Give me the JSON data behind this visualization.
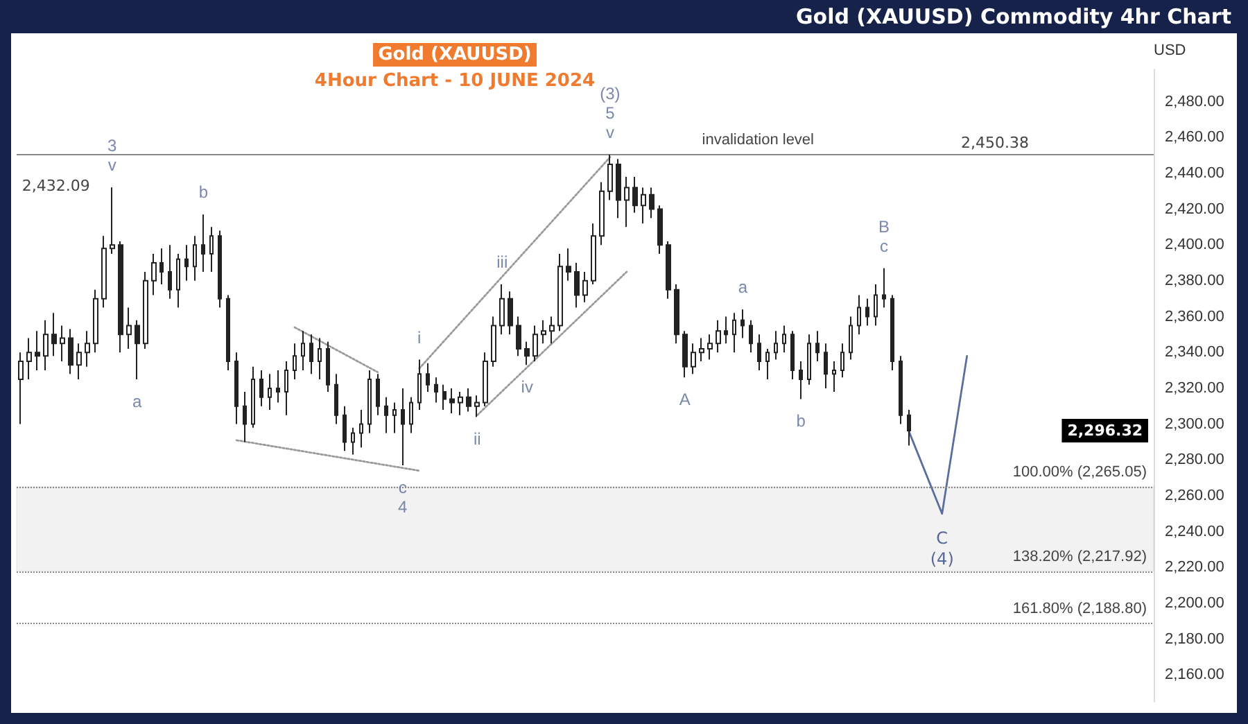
{
  "chart_data": {
    "type": "candlestick",
    "title": "Gold (XAUUSD)",
    "subtitle": "4Hour Chart - 10 JUNE 2024",
    "ylabel": "USD",
    "color": "#222222",
    "categories": [
      null,
      null,
      null,
      null,
      null,
      null,
      null,
      null,
      null,
      null,
      null,
      null,
      null,
      null,
      null,
      null,
      null,
      null,
      null,
      null,
      null,
      null,
      null,
      null,
      null,
      null,
      null,
      null,
      null,
      null,
      null,
      null,
      null,
      null,
      null,
      null,
      null,
      null,
      null,
      null,
      null,
      null,
      null,
      null,
      null,
      null,
      null,
      null,
      null,
      null,
      null,
      null,
      null,
      null,
      null,
      null,
      null,
      null,
      null,
      null,
      null,
      null,
      null,
      null,
      null,
      null,
      null,
      null,
      null,
      null,
      null,
      null,
      null,
      null,
      null,
      null,
      null,
      null,
      null,
      null,
      null,
      null,
      null,
      null,
      null,
      null,
      null,
      null,
      null,
      null,
      null,
      null,
      null,
      null,
      null,
      null,
      null,
      null,
      null,
      null,
      null,
      null,
      null,
      null,
      null,
      null,
      null,
      null,
      null,
      null,
      null,
      null,
      null,
      null,
      null,
      null,
      null,
      null,
      null,
      null,
      null,
      null,
      null,
      null,
      null,
      null,
      null,
      null,
      null,
      null,
      null,
      null,
      null,
      null,
      null,
      null,
      null
    ],
    "ohlc": [
      [
        2325,
        2340,
        2300,
        2335
      ],
      [
        2335,
        2348,
        2325,
        2340
      ],
      [
        2340,
        2352,
        2330,
        2338
      ],
      [
        2338,
        2358,
        2330,
        2350
      ],
      [
        2350,
        2362,
        2338,
        2345
      ],
      [
        2345,
        2355,
        2335,
        2348
      ],
      [
        2348,
        2353,
        2328,
        2333
      ],
      [
        2333,
        2345,
        2325,
        2340
      ],
      [
        2340,
        2352,
        2332,
        2345
      ],
      [
        2345,
        2375,
        2340,
        2370
      ],
      [
        2370,
        2405,
        2365,
        2398
      ],
      [
        2398,
        2432.09,
        2395,
        2400
      ],
      [
        2400,
        2402,
        2340,
        2350
      ],
      [
        2350,
        2365,
        2342,
        2355
      ],
      [
        2355,
        2358,
        2325,
        2345
      ],
      [
        2345,
        2385,
        2342,
        2380
      ],
      [
        2380,
        2395,
        2372,
        2390
      ],
      [
        2390,
        2398,
        2378,
        2385
      ],
      [
        2385,
        2400,
        2370,
        2375
      ],
      [
        2375,
        2395,
        2365,
        2392
      ],
      [
        2392,
        2400,
        2380,
        2388
      ],
      [
        2388,
        2405,
        2380,
        2400
      ],
      [
        2400,
        2417,
        2385,
        2395
      ],
      [
        2395,
        2410,
        2385,
        2405
      ],
      [
        2405,
        2408,
        2365,
        2370
      ],
      [
        2370,
        2372,
        2330,
        2335
      ],
      [
        2335,
        2340,
        2300,
        2310
      ],
      [
        2310,
        2318,
        2290,
        2300
      ],
      [
        2300,
        2332,
        2298,
        2325
      ],
      [
        2325,
        2330,
        2310,
        2315
      ],
      [
        2315,
        2328,
        2308,
        2320
      ],
      [
        2320,
        2330,
        2312,
        2318
      ],
      [
        2318,
        2335,
        2305,
        2330
      ],
      [
        2330,
        2345,
        2325,
        2338
      ],
      [
        2338,
        2352,
        2330,
        2345
      ],
      [
        2345,
        2350,
        2328,
        2335
      ],
      [
        2335,
        2348,
        2325,
        2342
      ],
      [
        2342,
        2346,
        2318,
        2322
      ],
      [
        2322,
        2328,
        2300,
        2305
      ],
      [
        2305,
        2310,
        2285,
        2290
      ],
      [
        2290,
        2298,
        2283,
        2295
      ],
      [
        2295,
        2308,
        2287,
        2300
      ],
      [
        2300,
        2330,
        2295,
        2325
      ],
      [
        2325,
        2328,
        2305,
        2310
      ],
      [
        2310,
        2315,
        2295,
        2305
      ],
      [
        2305,
        2312,
        2295,
        2308
      ],
      [
        2308,
        2320,
        2277,
        2300
      ],
      [
        2300,
        2315,
        2295,
        2312
      ],
      [
        2312,
        2336,
        2308,
        2328
      ],
      [
        2328,
        2334,
        2318,
        2322
      ],
      [
        2322,
        2326,
        2312,
        2318
      ],
      [
        2318,
        2322,
        2308,
        2314
      ],
      [
        2314,
        2320,
        2306,
        2312
      ],
      [
        2312,
        2318,
        2305,
        2315
      ],
      [
        2315,
        2320,
        2307,
        2310
      ],
      [
        2310,
        2316,
        2304,
        2312
      ],
      [
        2312,
        2340,
        2310,
        2335
      ],
      [
        2335,
        2360,
        2332,
        2355
      ],
      [
        2355,
        2378,
        2350,
        2370
      ],
      [
        2370,
        2374,
        2350,
        2355
      ],
      [
        2355,
        2360,
        2338,
        2342
      ],
      [
        2342,
        2346,
        2333,
        2338
      ],
      [
        2338,
        2355,
        2335,
        2350
      ],
      [
        2350,
        2358,
        2345,
        2352
      ],
      [
        2352,
        2360,
        2345,
        2355
      ],
      [
        2355,
        2395,
        2352,
        2388
      ],
      [
        2388,
        2398,
        2380,
        2385
      ],
      [
        2385,
        2390,
        2365,
        2372
      ],
      [
        2372,
        2385,
        2368,
        2380
      ],
      [
        2380,
        2412,
        2378,
        2405
      ],
      [
        2405,
        2435,
        2400,
        2430
      ],
      [
        2430,
        2450.38,
        2425,
        2445
      ],
      [
        2445,
        2448,
        2415,
        2425
      ],
      [
        2425,
        2438,
        2410,
        2432
      ],
      [
        2432,
        2438,
        2418,
        2422
      ],
      [
        2422,
        2432,
        2412,
        2428
      ],
      [
        2428,
        2432,
        2415,
        2420
      ],
      [
        2420,
        2422,
        2395,
        2400
      ],
      [
        2400,
        2402,
        2370,
        2375
      ],
      [
        2375,
        2378,
        2345,
        2350
      ],
      [
        2350,
        2352,
        2326,
        2332
      ],
      [
        2332,
        2345,
        2328,
        2340
      ],
      [
        2340,
        2348,
        2335,
        2342
      ],
      [
        2342,
        2350,
        2336,
        2345
      ],
      [
        2345,
        2358,
        2340,
        2352
      ],
      [
        2352,
        2360,
        2345,
        2350
      ],
      [
        2350,
        2362,
        2340,
        2358
      ],
      [
        2358,
        2364,
        2348,
        2355
      ],
      [
        2355,
        2358,
        2340,
        2345
      ],
      [
        2345,
        2350,
        2330,
        2335
      ],
      [
        2335,
        2342,
        2325,
        2340
      ],
      [
        2340,
        2352,
        2336,
        2345
      ],
      [
        2345,
        2355,
        2340,
        2350
      ],
      [
        2350,
        2352,
        2325,
        2330
      ],
      [
        2330,
        2335,
        2314,
        2325
      ],
      [
        2325,
        2350,
        2322,
        2345
      ],
      [
        2345,
        2352,
        2335,
        2340
      ],
      [
        2340,
        2345,
        2320,
        2328
      ],
      [
        2328,
        2335,
        2318,
        2330
      ],
      [
        2330,
        2345,
        2326,
        2340
      ],
      [
        2340,
        2360,
        2336,
        2355
      ],
      [
        2355,
        2372,
        2350,
        2365
      ],
      [
        2365,
        2370,
        2355,
        2360
      ],
      [
        2360,
        2378,
        2355,
        2372
      ],
      [
        2372,
        2387,
        2365,
        2370
      ],
      [
        2370,
        2372,
        2330,
        2335
      ],
      [
        2335,
        2338,
        2300,
        2305
      ],
      [
        2305,
        2308,
        2288,
        2296.32
      ],
      null,
      null,
      null,
      null,
      null,
      null,
      null,
      null,
      null,
      null,
      null,
      null,
      null,
      null,
      null,
      null,
      null,
      null,
      null,
      null,
      null,
      null,
      null,
      null,
      null,
      null,
      null,
      null,
      null
    ],
    "value_labels": [
      null,
      null,
      null,
      null,
      null,
      null,
      null,
      null,
      null,
      null,
      null,
      "3\nv",
      null,
      null,
      "a",
      null,
      null,
      null,
      null,
      null,
      null,
      null,
      "b",
      null,
      null,
      null,
      null,
      null,
      null,
      null,
      null,
      null,
      null,
      null,
      null,
      null,
      null,
      null,
      null,
      null,
      null,
      null,
      null,
      null,
      null,
      null,
      "c\n4",
      null,
      "i",
      null,
      null,
      null,
      null,
      null,
      null,
      "ii",
      null,
      null,
      "iii",
      null,
      null,
      "iv",
      null,
      null,
      null,
      null,
      null,
      null,
      null,
      null,
      null,
      "(3)\n5\nv",
      null,
      null,
      null,
      null,
      null,
      null,
      null,
      null,
      "A",
      null,
      null,
      null,
      null,
      null,
      null,
      "a",
      null,
      null,
      null,
      null,
      null,
      null,
      "b",
      null,
      null,
      null,
      null,
      null,
      null,
      null,
      null,
      null,
      "B\nc",
      null,
      null,
      null,
      null,
      null,
      null,
      null,
      null,
      null,
      null,
      null,
      null,
      null,
      null,
      null,
      null,
      null,
      null,
      null,
      null,
      null,
      null,
      null,
      null,
      null,
      null,
      null,
      null,
      null,
      null,
      null,
      null
    ],
    "series": [
      {
        "type": "line",
        "color": "#5a6e9e",
        "line_style": "solid",
        "values": [
          null,
          null,
          null,
          null,
          null,
          null,
          null,
          null,
          null,
          null,
          null,
          null,
          null,
          null,
          null,
          null,
          null,
          null,
          null,
          null,
          null,
          null,
          null,
          null,
          null,
          null,
          null,
          null,
          null,
          null,
          null,
          null,
          null,
          null,
          null,
          null,
          null,
          null,
          null,
          null,
          null,
          null,
          null,
          null,
          null,
          null,
          null,
          null,
          null,
          null,
          null,
          null,
          null,
          null,
          null,
          null,
          null,
          null,
          null,
          null,
          null,
          null,
          null,
          null,
          null,
          null,
          null,
          null,
          null,
          null,
          null,
          null,
          null,
          null,
          null,
          null,
          null,
          null,
          null,
          null,
          null,
          null,
          null,
          null,
          null,
          null,
          null,
          null,
          null,
          null,
          null,
          null,
          null,
          null,
          null,
          null,
          null,
          null,
          null,
          null,
          null,
          null,
          null,
          null,
          null,
          null,
          null,
          2296,
          null,
          null,
          null,
          2250,
          null,
          null,
          2338,
          null,
          null,
          null,
          null,
          null,
          null,
          null,
          null,
          null,
          null,
          null,
          null,
          null,
          null,
          null,
          null,
          null,
          null,
          null,
          null,
          null,
          null
        ]
      },
      {
        "type": "line",
        "color": "#9a9a9a",
        "line_style": "dotted",
        "values": [
          null,
          null,
          null,
          null,
          null,
          null,
          null,
          null,
          null,
          null,
          null,
          null,
          null,
          null,
          null,
          null,
          null,
          null,
          null,
          null,
          null,
          null,
          null,
          null,
          null,
          null,
          null,
          null,
          null,
          null,
          null,
          null,
          null,
          2354,
          null,
          null,
          null,
          null,
          null,
          null,
          null,
          null,
          null,
          2329,
          null,
          null,
          null,
          null,
          null,
          null,
          null,
          null,
          null,
          null,
          null,
          null,
          null,
          null,
          null,
          null,
          null,
          null,
          null,
          null,
          null,
          null,
          null,
          null,
          null,
          null,
          null,
          null,
          null,
          null,
          null,
          null,
          null,
          null,
          null,
          null,
          null,
          null,
          null,
          null,
          null,
          null,
          null,
          null,
          null,
          null,
          null,
          null,
          null,
          null,
          null,
          null,
          null,
          null,
          null,
          null,
          null,
          null,
          null,
          null,
          null,
          null,
          null,
          null,
          null,
          null,
          null,
          null,
          null,
          null,
          null,
          null,
          null,
          null,
          null,
          null,
          null,
          null,
          null,
          null,
          null,
          null,
          null,
          null,
          null,
          null,
          null,
          null,
          null,
          null,
          null,
          null,
          null
        ]
      },
      {
        "type": "line",
        "color": "#9a9a9a",
        "line_style": "dotted",
        "values": [
          null,
          null,
          null,
          null,
          null,
          null,
          null,
          null,
          null,
          null,
          null,
          null,
          null,
          null,
          null,
          null,
          null,
          null,
          null,
          null,
          null,
          null,
          null,
          null,
          null,
          null,
          2291,
          null,
          null,
          null,
          null,
          null,
          null,
          null,
          null,
          null,
          null,
          null,
          null,
          null,
          null,
          null,
          null,
          null,
          null,
          null,
          null,
          null,
          2274,
          null,
          null,
          null,
          null,
          null,
          null,
          null,
          null,
          null,
          null,
          null,
          null,
          null,
          null,
          null,
          null,
          null,
          null,
          null,
          null,
          null,
          null,
          null,
          null,
          null,
          null,
          null,
          null,
          null,
          null,
          null,
          null,
          null,
          null,
          null,
          null,
          null,
          null,
          null,
          null,
          null,
          null,
          null,
          null,
          null,
          null,
          null,
          null,
          null,
          null,
          null,
          null,
          null,
          null,
          null,
          null,
          null,
          null,
          null,
          null,
          null,
          null,
          null,
          null,
          null,
          null,
          null,
          null,
          null,
          null,
          null,
          null,
          null,
          null,
          null,
          null,
          null,
          null,
          null,
          null,
          null,
          null,
          null,
          null,
          null,
          null,
          null,
          null
        ]
      },
      {
        "type": "line",
        "color": "#9a9a9a",
        "line_style": "dotted",
        "values": [
          null,
          null,
          null,
          null,
          null,
          null,
          null,
          null,
          null,
          null,
          null,
          null,
          null,
          null,
          null,
          null,
          null,
          null,
          null,
          null,
          null,
          null,
          null,
          null,
          null,
          null,
          null,
          null,
          null,
          null,
          null,
          null,
          null,
          null,
          null,
          null,
          null,
          null,
          null,
          null,
          null,
          null,
          null,
          null,
          null,
          null,
          null,
          null,
          2331,
          null,
          null,
          null,
          null,
          null,
          null,
          null,
          null,
          null,
          null,
          null,
          null,
          null,
          null,
          null,
          null,
          null,
          null,
          null,
          null,
          null,
          null,
          2449,
          null,
          null,
          null,
          null,
          null,
          null,
          null,
          null,
          null,
          null,
          null,
          null,
          null,
          null,
          null,
          null,
          null,
          null,
          null,
          null,
          null,
          null,
          null,
          null,
          null,
          null,
          null,
          null,
          null,
          null,
          null,
          null,
          null,
          null,
          null,
          null,
          null,
          null,
          null,
          null,
          null,
          null,
          null,
          null,
          null,
          null,
          null,
          null,
          null,
          null,
          null,
          null,
          null,
          null,
          null,
          null,
          null,
          null,
          null,
          null,
          null,
          null,
          null,
          null,
          null
        ]
      },
      {
        "type": "line",
        "color": "#9a9a9a",
        "line_style": "dotted",
        "values": [
          null,
          null,
          null,
          null,
          null,
          null,
          null,
          null,
          null,
          null,
          null,
          null,
          null,
          null,
          null,
          null,
          null,
          null,
          null,
          null,
          null,
          null,
          null,
          null,
          null,
          null,
          null,
          null,
          null,
          null,
          null,
          null,
          null,
          null,
          null,
          null,
          null,
          null,
          null,
          null,
          null,
          null,
          null,
          null,
          null,
          null,
          null,
          null,
          null,
          null,
          null,
          null,
          null,
          null,
          null,
          2305,
          null,
          null,
          null,
          null,
          null,
          null,
          null,
          null,
          null,
          null,
          null,
          null,
          null,
          null,
          null,
          null,
          null,
          2385,
          null,
          null,
          null,
          null,
          null,
          null,
          null,
          null,
          null,
          null,
          null,
          null,
          null,
          null,
          null,
          null,
          null,
          null,
          null,
          null,
          null,
          null,
          null,
          null,
          null,
          null,
          null,
          null,
          null,
          null,
          null,
          null,
          null,
          null,
          null,
          null,
          null,
          null,
          null,
          null,
          null,
          null,
          null,
          null,
          null,
          null,
          null,
          null,
          null,
          null,
          null,
          null,
          null,
          null,
          null,
          null,
          null,
          null,
          null,
          null,
          null,
          null,
          null
        ]
      }
    ],
    "ref_lines": [
      {
        "axis": "y",
        "value": 2450.38,
        "label": "invalidation level",
        "color": "#888888",
        "line_style": "solid"
      },
      {
        "axis": "y",
        "value": 2265.05,
        "label": "100.00% (2,265.05)",
        "color": "#888888",
        "line_style": "dotted"
      },
      {
        "axis": "y",
        "value": 2217.92,
        "label": "138.20% (2,217.92)",
        "color": "#888888",
        "line_style": "dotted"
      },
      {
        "axis": "y",
        "value": 2188.8,
        "label": "161.80% (2,188.80)",
        "color": "#888888",
        "line_style": "dotted"
      }
    ],
    "bands": [
      {
        "axis": "y",
        "from": 2217.92,
        "to": 2265.05,
        "color": "#222222"
      }
    ],
    "annotations": [
      "Gold (XAUUSD) Commodity 4hr Chart",
      "2,432.09",
      "2,296.32",
      {
        "text": "2,450.38",
        "y": 2450.38
      },
      {
        "text": "C\n(4)",
        "y": 2250
      }
    ],
    "ylim": [
      2145,
      2498
    ],
    "yticks": [
      {
        "value": 2160,
        "label": "2,160.00"
      },
      {
        "value": 2180,
        "label": "2,180.00"
      },
      {
        "value": 2200,
        "label": "2,200.00"
      },
      {
        "value": 2220,
        "label": "2,220.00"
      },
      {
        "value": 2240,
        "label": "2,240.00"
      },
      {
        "value": 2260,
        "label": "2,260.00"
      },
      {
        "value": 2280,
        "label": "2,280.00"
      },
      {
        "value": 2300,
        "label": "2,300.00"
      },
      {
        "value": 2320,
        "label": "2,320.00"
      },
      {
        "value": 2340,
        "label": "2,340.00"
      },
      {
        "value": 2360,
        "label": "2,360.00"
      },
      {
        "value": 2380,
        "label": "2,380.00"
      },
      {
        "value": 2400,
        "label": "2,400.00"
      },
      {
        "value": 2420,
        "label": "2,420.00"
      },
      {
        "value": 2440,
        "label": "2,440.00"
      },
      {
        "value": 2460,
        "label": "2,460.00"
      },
      {
        "value": 2480,
        "label": "2,480.00"
      }
    ],
    "tick_labels": "y",
    "grid": false
  }
}
